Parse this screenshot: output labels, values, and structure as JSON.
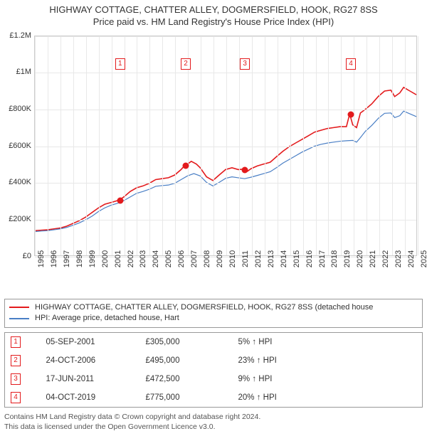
{
  "title": {
    "line1": "HIGHWAY COTTAGE, CHATTER ALLEY, DOGMERSFIELD, HOOK, RG27 8SS",
    "line2": "Price paid vs. HM Land Registry's House Price Index (HPI)"
  },
  "chart": {
    "type": "line",
    "background_color": "#ffffff",
    "grid_color": "#e8e8e8",
    "border_color": "#cccccc",
    "x": {
      "min": 1995,
      "max": 2025,
      "tick_step": 1,
      "labels": [
        "1995",
        "1996",
        "1997",
        "1998",
        "1999",
        "2000",
        "2001",
        "2002",
        "2003",
        "2004",
        "2005",
        "2006",
        "2007",
        "2008",
        "2009",
        "2010",
        "2011",
        "2012",
        "2013",
        "2014",
        "2015",
        "2016",
        "2017",
        "2018",
        "2019",
        "2020",
        "2021",
        "2022",
        "2023",
        "2024",
        "2025"
      ]
    },
    "y": {
      "min": 0,
      "max": 1200000,
      "tick_step": 200000,
      "labels": [
        "£0",
        "£200K",
        "£400K",
        "£600K",
        "£800K",
        "£1M",
        "£1.2M"
      ]
    },
    "series": [
      {
        "name": "property",
        "label": "HIGHWAY COTTAGE, CHATTER ALLEY, DOGMERSFIELD, HOOK, RG27 8SS (detached house",
        "color": "#e31a1c",
        "width": 1.6,
        "points": [
          [
            1995.0,
            135000
          ],
          [
            1995.5,
            138000
          ],
          [
            1996.0,
            140000
          ],
          [
            1996.5,
            145000
          ],
          [
            1997.0,
            150000
          ],
          [
            1997.5,
            160000
          ],
          [
            1998.0,
            175000
          ],
          [
            1998.5,
            190000
          ],
          [
            1999.0,
            210000
          ],
          [
            1999.5,
            235000
          ],
          [
            2000.0,
            260000
          ],
          [
            2000.5,
            280000
          ],
          [
            2001.0,
            290000
          ],
          [
            2001.5,
            300000
          ],
          [
            2001.68,
            305000
          ],
          [
            2002.0,
            320000
          ],
          [
            2002.5,
            350000
          ],
          [
            2003.0,
            370000
          ],
          [
            2003.5,
            380000
          ],
          [
            2004.0,
            395000
          ],
          [
            2004.5,
            415000
          ],
          [
            2005.0,
            420000
          ],
          [
            2005.5,
            425000
          ],
          [
            2006.0,
            440000
          ],
          [
            2006.5,
            470000
          ],
          [
            2006.82,
            495000
          ],
          [
            2007.0,
            500000
          ],
          [
            2007.3,
            515000
          ],
          [
            2007.7,
            500000
          ],
          [
            2008.0,
            480000
          ],
          [
            2008.5,
            430000
          ],
          [
            2009.0,
            410000
          ],
          [
            2009.5,
            440000
          ],
          [
            2010.0,
            470000
          ],
          [
            2010.5,
            480000
          ],
          [
            2011.0,
            470000
          ],
          [
            2011.46,
            472500
          ],
          [
            2011.7,
            460000
          ],
          [
            2012.0,
            475000
          ],
          [
            2012.5,
            490000
          ],
          [
            2013.0,
            500000
          ],
          [
            2013.5,
            510000
          ],
          [
            2014.0,
            540000
          ],
          [
            2014.5,
            570000
          ],
          [
            2015.0,
            595000
          ],
          [
            2015.5,
            615000
          ],
          [
            2016.0,
            635000
          ],
          [
            2016.5,
            655000
          ],
          [
            2017.0,
            675000
          ],
          [
            2017.5,
            685000
          ],
          [
            2018.0,
            695000
          ],
          [
            2018.5,
            700000
          ],
          [
            2019.0,
            705000
          ],
          [
            2019.5,
            705000
          ],
          [
            2019.76,
            775000
          ],
          [
            2020.0,
            715000
          ],
          [
            2020.3,
            700000
          ],
          [
            2020.6,
            780000
          ],
          [
            2021.0,
            800000
          ],
          [
            2021.5,
            830000
          ],
          [
            2022.0,
            870000
          ],
          [
            2022.5,
            900000
          ],
          [
            2023.0,
            905000
          ],
          [
            2023.3,
            870000
          ],
          [
            2023.7,
            890000
          ],
          [
            2024.0,
            920000
          ],
          [
            2024.5,
            900000
          ],
          [
            2025.0,
            880000
          ]
        ]
      },
      {
        "name": "hpi",
        "label": "HPI: Average price, detached house, Hart",
        "color": "#4a7fc5",
        "width": 1.2,
        "points": [
          [
            1995.0,
            130000
          ],
          [
            1995.5,
            133000
          ],
          [
            1996.0,
            135000
          ],
          [
            1996.5,
            140000
          ],
          [
            1997.0,
            145000
          ],
          [
            1997.5,
            153000
          ],
          [
            1998.0,
            165000
          ],
          [
            1998.5,
            178000
          ],
          [
            1999.0,
            195000
          ],
          [
            1999.5,
            215000
          ],
          [
            2000.0,
            240000
          ],
          [
            2000.5,
            260000
          ],
          [
            2001.0,
            275000
          ],
          [
            2001.5,
            285000
          ],
          [
            2002.0,
            300000
          ],
          [
            2002.5,
            320000
          ],
          [
            2003.0,
            340000
          ],
          [
            2003.5,
            350000
          ],
          [
            2004.0,
            362000
          ],
          [
            2004.5,
            378000
          ],
          [
            2005.0,
            382000
          ],
          [
            2005.5,
            385000
          ],
          [
            2006.0,
            395000
          ],
          [
            2006.5,
            415000
          ],
          [
            2007.0,
            435000
          ],
          [
            2007.5,
            448000
          ],
          [
            2008.0,
            435000
          ],
          [
            2008.5,
            400000
          ],
          [
            2009.0,
            380000
          ],
          [
            2009.5,
            400000
          ],
          [
            2010.0,
            422000
          ],
          [
            2010.5,
            430000
          ],
          [
            2011.0,
            425000
          ],
          [
            2011.5,
            420000
          ],
          [
            2012.0,
            428000
          ],
          [
            2012.5,
            438000
          ],
          [
            2013.0,
            448000
          ],
          [
            2013.5,
            458000
          ],
          [
            2014.0,
            480000
          ],
          [
            2014.5,
            505000
          ],
          [
            2015.0,
            525000
          ],
          [
            2015.5,
            545000
          ],
          [
            2016.0,
            565000
          ],
          [
            2016.5,
            582000
          ],
          [
            2017.0,
            598000
          ],
          [
            2017.5,
            608000
          ],
          [
            2018.0,
            615000
          ],
          [
            2018.5,
            620000
          ],
          [
            2019.0,
            625000
          ],
          [
            2019.5,
            628000
          ],
          [
            2020.0,
            630000
          ],
          [
            2020.3,
            620000
          ],
          [
            2020.6,
            645000
          ],
          [
            2021.0,
            680000
          ],
          [
            2021.5,
            712000
          ],
          [
            2022.0,
            750000
          ],
          [
            2022.5,
            778000
          ],
          [
            2023.0,
            780000
          ],
          [
            2023.3,
            755000
          ],
          [
            2023.7,
            765000
          ],
          [
            2024.0,
            790000
          ],
          [
            2024.5,
            775000
          ],
          [
            2025.0,
            760000
          ]
        ]
      }
    ],
    "sale_markers": [
      {
        "n": "1",
        "x": 2001.68,
        "y": 305000,
        "label_y": 1080000
      },
      {
        "n": "2",
        "x": 2006.82,
        "y": 495000,
        "label_y": 1080000
      },
      {
        "n": "3",
        "x": 2011.46,
        "y": 472500,
        "label_y": 1080000
      },
      {
        "n": "4",
        "x": 2019.76,
        "y": 775000,
        "label_y": 1080000
      }
    ],
    "marker_fill": "#e31a1c",
    "marker_box_border": "#e31a1c",
    "marker_box_text": "#e31a1c"
  },
  "legend": {
    "items": [
      {
        "color": "#e31a1c",
        "label": "HIGHWAY COTTAGE, CHATTER ALLEY, DOGMERSFIELD, HOOK, RG27 8SS (detached house"
      },
      {
        "color": "#4a7fc5",
        "label": "HPI: Average price, detached house, Hart"
      }
    ]
  },
  "sales_table": {
    "row_marker_color": "#e31a1c",
    "rows": [
      {
        "n": "1",
        "date": "05-SEP-2001",
        "price": "£305,000",
        "delta": "5% ↑ HPI"
      },
      {
        "n": "2",
        "date": "24-OCT-2006",
        "price": "£495,000",
        "delta": "23% ↑ HPI"
      },
      {
        "n": "3",
        "date": "17-JUN-2011",
        "price": "£472,500",
        "delta": "9% ↑ HPI"
      },
      {
        "n": "4",
        "date": "04-OCT-2019",
        "price": "£775,000",
        "delta": "20% ↑ HPI"
      }
    ]
  },
  "footer": {
    "line1": "Contains HM Land Registry data © Crown copyright and database right 2024.",
    "line2": "This data is licensed under the Open Government Licence v3.0."
  }
}
